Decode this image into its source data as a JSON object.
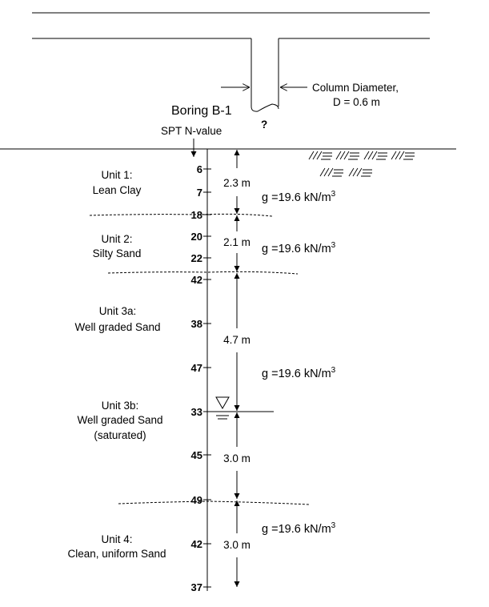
{
  "column": {
    "label_line1": "Column Diameter,",
    "label_line2": "D = 0.6 m",
    "unknown_depth": "?"
  },
  "boring": {
    "title": "Boring B-1",
    "spt_label": "SPT N-value"
  },
  "spt_values": [
    "6",
    "7",
    "18",
    "20",
    "22",
    "42",
    "38",
    "47",
    "33",
    "45",
    "49",
    "42",
    "37"
  ],
  "units": [
    {
      "line1": "Unit 1:",
      "line2": "Lean Clay"
    },
    {
      "line1": "Unit 2:",
      "line2": "Silty Sand"
    },
    {
      "line1": "Unit 3a:",
      "line2": "Well graded Sand"
    },
    {
      "line1": "Unit 3b:",
      "line2": "Well graded Sand",
      "line3": "(saturated)"
    },
    {
      "line1": "Unit 4:",
      "line2": "Clean, uniform Sand"
    }
  ],
  "thicknesses": [
    "2.3 m",
    "2.1 m",
    "4.7 m",
    "3.0 m",
    "3.0 m"
  ],
  "unit_weights": [
    {
      "symbol": "g",
      "value": "=19.6 kN/m",
      "exp": "3"
    },
    {
      "symbol": "g",
      "value": "=19.6 kN/m",
      "exp": "3"
    },
    {
      "symbol": "g",
      "value": "=19.6 kN/m",
      "exp": "3"
    },
    {
      "symbol": "g",
      "value": "=19.6 kN/m",
      "exp": "3"
    }
  ]
}
